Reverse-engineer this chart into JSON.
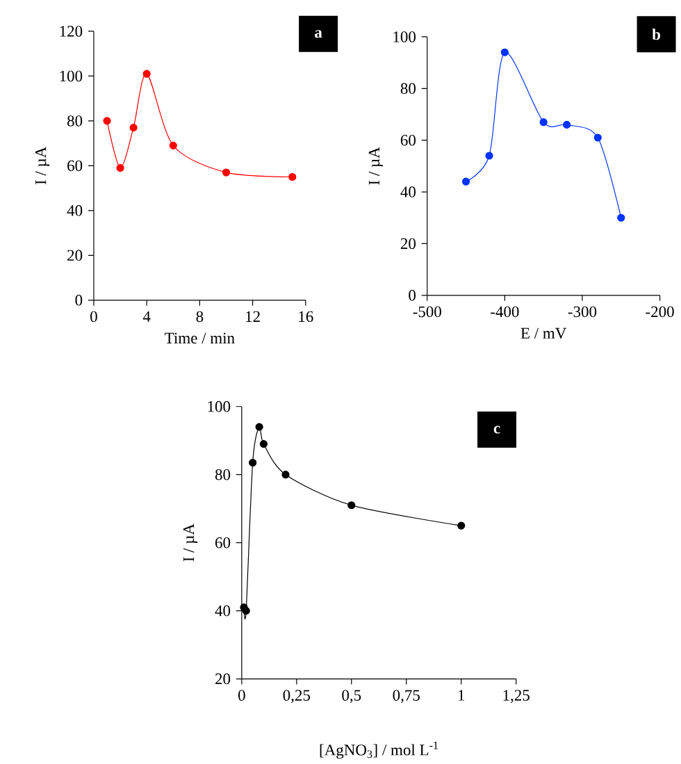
{
  "chart_data": [
    {
      "type": "line",
      "xlabel": "Time / min",
      "ylabel": "I / µA",
      "annotations": [
        "a"
      ],
      "marker": "circle",
      "line_style": "solid",
      "grid": false,
      "xlim": [
        0,
        16
      ],
      "xticks": [
        0,
        4,
        8,
        12,
        16
      ],
      "ylim": [
        0,
        120
      ],
      "yticks": [
        0,
        20,
        40,
        60,
        80,
        100,
        120
      ],
      "series": [
        {
          "color": "#ff0000",
          "x": [
            1,
            2,
            3,
            4,
            6,
            10,
            15
          ],
          "values": [
            80,
            59,
            77,
            101,
            69,
            57,
            55
          ]
        }
      ]
    },
    {
      "type": "line",
      "xlabel": "E / mV",
      "ylabel": "I / µA",
      "annotations": [
        "b"
      ],
      "marker": "circle",
      "line_style": "solid",
      "grid": false,
      "xlim": [
        -500,
        -200
      ],
      "xticks": [
        -500,
        -400,
        -300,
        -200
      ],
      "ylim": [
        0,
        100
      ],
      "yticks": [
        0,
        20,
        40,
        60,
        80,
        100
      ],
      "series": [
        {
          "color": "#0033ff",
          "x": [
            -450,
            -420,
            -400,
            -350,
            -320,
            -280,
            -250
          ],
          "values": [
            44,
            54,
            94,
            67,
            66,
            61,
            30
          ]
        }
      ]
    },
    {
      "type": "line",
      "xlabel": "[AgNO$_{3}$] / mol L$^{-1}$",
      "ylabel": "I / µA",
      "annotations": [
        "c"
      ],
      "marker": "circle",
      "line_style": "solid",
      "grid": false,
      "xlim": [
        0,
        1.25
      ],
      "xticks": [
        0,
        {
          "value": 0.25,
          "label": "0,25"
        },
        {
          "value": 0.5,
          "label": "0,5"
        },
        {
          "value": 0.75,
          "label": "0,75"
        },
        1,
        {
          "value": 1.25,
          "label": "1,25"
        }
      ],
      "ylim": [
        20,
        100
      ],
      "yticks": [
        20,
        40,
        60,
        80,
        100
      ],
      "series": [
        {
          "color": "#000000",
          "x": [
            0.01,
            0.02,
            0.05,
            0.08,
            0.1,
            0.2,
            0.5,
            1
          ],
          "values": [
            41,
            40,
            83.5,
            94,
            89,
            80,
            71,
            65
          ]
        }
      ]
    }
  ]
}
